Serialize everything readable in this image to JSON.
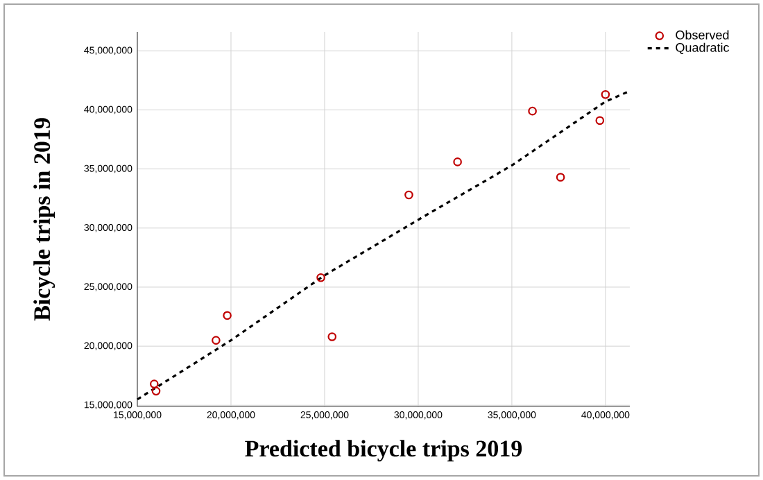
{
  "chart_data": {
    "type": "scatter",
    "xlabel": "Predicted bicycle trips 2019",
    "ylabel": "Bicycle trips in 2019",
    "xlim": [
      15000000,
      41300000
    ],
    "ylim": [
      14900000,
      46600000
    ],
    "xticks": [
      {
        "value": 15000000,
        "label": "15,000,000"
      },
      {
        "value": 20000000,
        "label": "20,000,000"
      },
      {
        "value": 25000000,
        "label": "25,000,000"
      },
      {
        "value": 30000000,
        "label": "30,000,000"
      },
      {
        "value": 35000000,
        "label": "35,000,000"
      },
      {
        "value": 40000000,
        "label": "40,000,000"
      }
    ],
    "yticks": [
      {
        "value": 15000000,
        "label": "15,000,000"
      },
      {
        "value": 20000000,
        "label": "20,000,000"
      },
      {
        "value": 25000000,
        "label": "25,000,000"
      },
      {
        "value": 30000000,
        "label": "30,000,000"
      },
      {
        "value": 35000000,
        "label": "35,000,000"
      },
      {
        "value": 40000000,
        "label": "40,000,000"
      },
      {
        "value": 45000000,
        "label": "45,000,000"
      }
    ],
    "grid": true,
    "legend": "top right",
    "series": [
      {
        "name": "Observed",
        "marker": "circle",
        "color": "#c00000",
        "x": [
          15900000,
          16000000,
          19200000,
          19800000,
          24800000,
          25400000,
          29500000,
          32100000,
          36100000,
          37600000,
          39700000,
          40000000
        ],
        "values": [
          16800000,
          16200000,
          20500000,
          22600000,
          25800000,
          20800000,
          32800000,
          35600000,
          39900000,
          34300000,
          39100000,
          41300000
        ]
      },
      {
        "name": "Quadratic",
        "type": "line",
        "line_style": "dashed",
        "marker": "none",
        "color": "#000000",
        "x": [
          15000000,
          20000000,
          25000000,
          30000000,
          35000000,
          40000000,
          41300000
        ],
        "values": [
          15500000,
          20500000,
          26000000,
          30700000,
          35300000,
          40700000,
          41600000
        ]
      }
    ]
  }
}
